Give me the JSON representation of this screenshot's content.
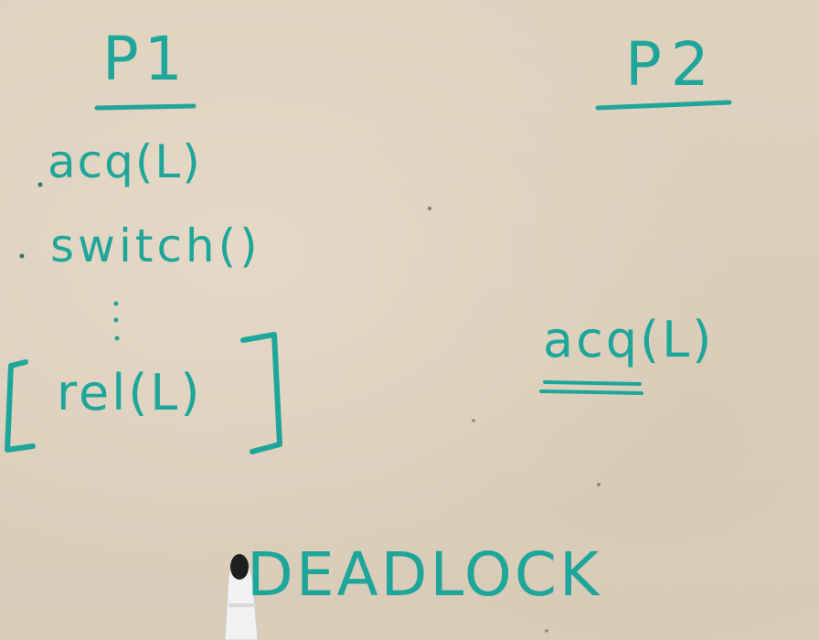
{
  "whiteboard": {
    "p1_label": "P1",
    "p2_label": "P2",
    "p1_acquire": "acq(L)",
    "p1_switch": "switch()",
    "p1_release": "rel(L)",
    "p2_acquire": "acq(L)",
    "caption": "DEADLOCK"
  },
  "ink_color": "#1fa69a",
  "marker": "marker-pen"
}
